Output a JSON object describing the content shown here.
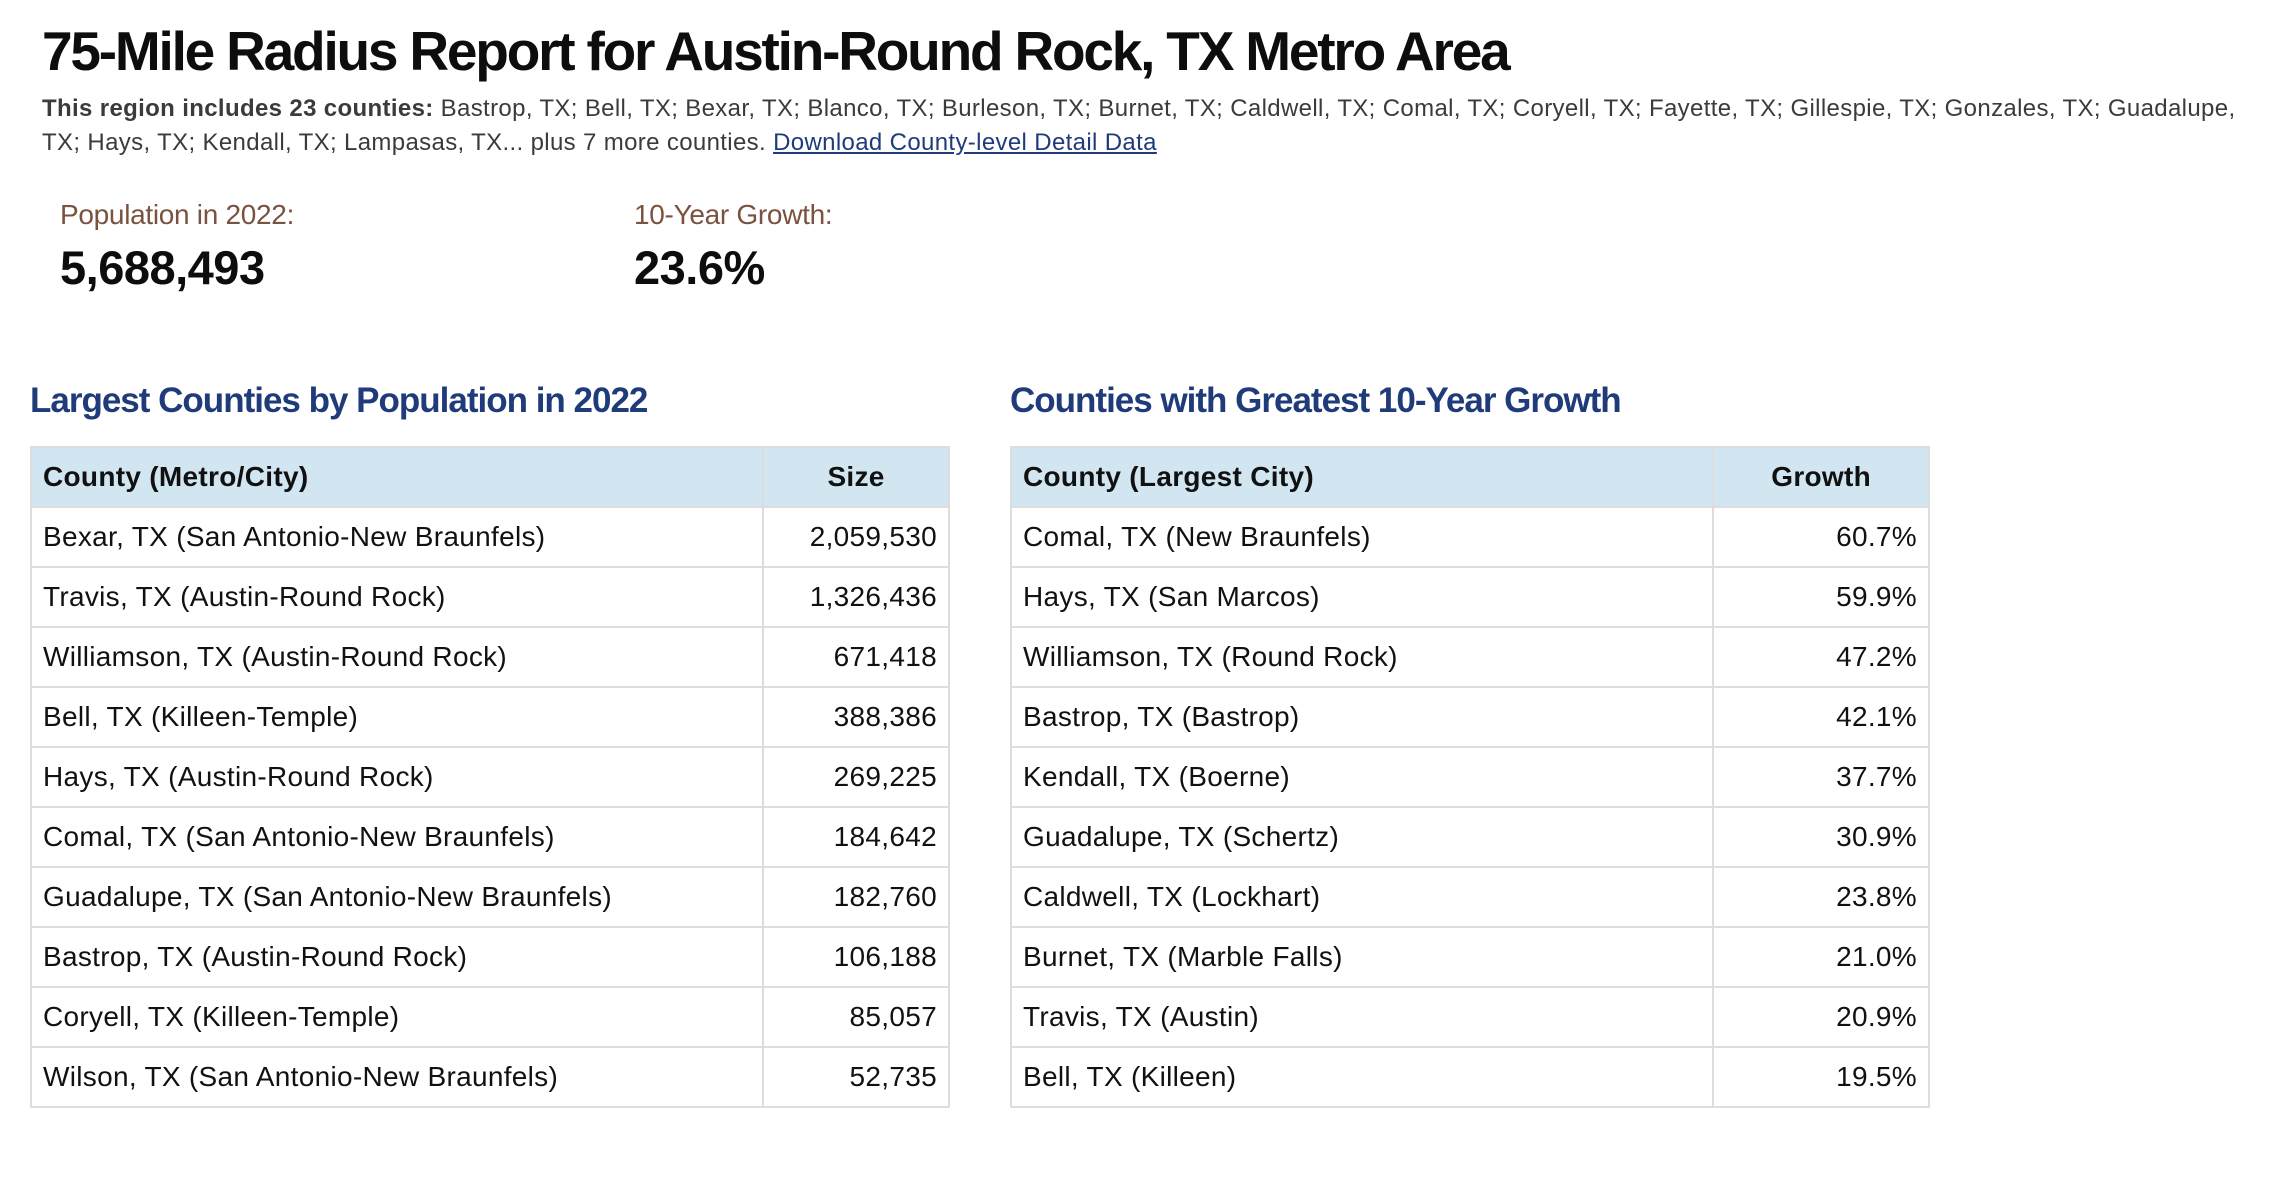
{
  "title": "75-Mile Radius Report for Austin-Round Rock, TX Metro Area",
  "intro": {
    "lead": "This region includes 23 counties:",
    "counties_text": "Bastrop, TX; Bell, TX; Bexar, TX; Blanco, TX; Burleson, TX; Burnet, TX; Caldwell, TX; Comal, TX; Coryell, TX; Fayette, TX; Gillespie, TX; Gonzales, TX; Guadalupe, TX; Hays, TX; Kendall, TX; Lampasas, TX... plus 7 more counties.",
    "download_link": "Download County-level Detail Data"
  },
  "stats": {
    "population": {
      "label": "Population in 2022:",
      "value": "5,688,493"
    },
    "growth": {
      "label": "10-Year Growth:",
      "value": "23.6%"
    }
  },
  "largest": {
    "title": "Largest Counties by Population in 2022",
    "headers": {
      "county": "County (Metro/City)",
      "value": "Size"
    },
    "rows": [
      {
        "county": "Bexar, TX (San Antonio-New Braunfels)",
        "value": "2,059,530"
      },
      {
        "county": "Travis, TX (Austin-Round Rock)",
        "value": "1,326,436"
      },
      {
        "county": "Williamson, TX (Austin-Round Rock)",
        "value": "671,418"
      },
      {
        "county": "Bell, TX (Killeen-Temple)",
        "value": "388,386"
      },
      {
        "county": "Hays, TX (Austin-Round Rock)",
        "value": "269,225"
      },
      {
        "county": "Comal, TX (San Antonio-New Braunfels)",
        "value": "184,642"
      },
      {
        "county": "Guadalupe, TX (San Antonio-New Braunfels)",
        "value": "182,760"
      },
      {
        "county": "Bastrop, TX (Austin-Round Rock)",
        "value": "106,188"
      },
      {
        "county": "Coryell, TX (Killeen-Temple)",
        "value": "85,057"
      },
      {
        "county": "Wilson, TX (San Antonio-New Braunfels)",
        "value": "52,735"
      }
    ]
  },
  "growth": {
    "title": "Counties with Greatest 10-Year Growth",
    "headers": {
      "county": "County (Largest City)",
      "value": "Growth"
    },
    "rows": [
      {
        "county": "Comal, TX (New Braunfels)",
        "value": "60.7%"
      },
      {
        "county": "Hays, TX (San Marcos)",
        "value": "59.9%"
      },
      {
        "county": "Williamson, TX (Round Rock)",
        "value": "47.2%"
      },
      {
        "county": "Bastrop, TX (Bastrop)",
        "value": "42.1%"
      },
      {
        "county": "Kendall, TX (Boerne)",
        "value": "37.7%"
      },
      {
        "county": "Guadalupe, TX (Schertz)",
        "value": "30.9%"
      },
      {
        "county": "Caldwell, TX (Lockhart)",
        "value": "23.8%"
      },
      {
        "county": "Burnet, TX (Marble Falls)",
        "value": "21.0%"
      },
      {
        "county": "Travis, TX (Austin)",
        "value": "20.9%"
      },
      {
        "county": "Bell, TX (Killeen)",
        "value": "19.5%"
      }
    ]
  },
  "colors": {
    "heading_blue": "#1f3b7a",
    "stat_label_brown": "#7a5240",
    "table_header_bg": "#d2e6f2",
    "table_border": "#dddddd"
  }
}
